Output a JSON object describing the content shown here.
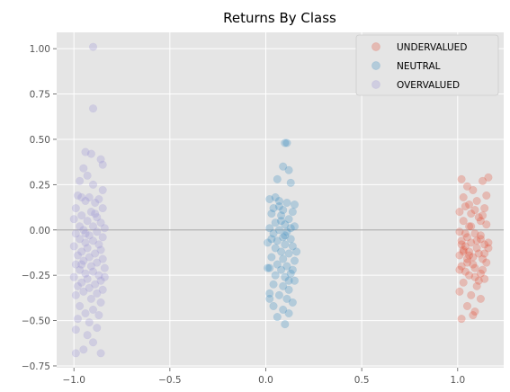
{
  "chart_data": {
    "type": "scatter",
    "title": "Returns By Class",
    "xlabel": "",
    "ylabel": "",
    "xlim": [
      -1.09,
      1.24
    ],
    "ylim": [
      -0.76,
      1.09
    ],
    "x_ticks": [
      -1.0,
      -0.5,
      0.0,
      0.5,
      1.0
    ],
    "x_tick_labels": [
      "−1.0",
      "−0.5",
      "0.0",
      "0.5",
      "1.0"
    ],
    "y_ticks": [
      -0.75,
      -0.5,
      -0.25,
      0.0,
      0.25,
      0.5,
      0.75,
      1.0
    ],
    "y_tick_labels": [
      "−0.75",
      "−0.50",
      "−0.25",
      "0.00",
      "0.25",
      "0.50",
      "0.75",
      "1.00"
    ],
    "grid": true,
    "reference_line_y": 0.0,
    "legend_position": "top-right",
    "style": {
      "plot_bg": "#e5e5e5",
      "grid_color": "#ffffff",
      "reference_line_color": "#b0b0b0",
      "point_opacity": 0.28
    },
    "series": [
      {
        "name": "UNDERVALUED",
        "color": "#e24a33",
        "points": [
          [
            1.02,
            0.28
          ],
          [
            1.05,
            0.24
          ],
          [
            1.08,
            0.22
          ],
          [
            1.03,
            0.18
          ],
          [
            1.13,
            0.27
          ],
          [
            1.16,
            0.29
          ],
          [
            1.1,
            0.16
          ],
          [
            1.14,
            0.12
          ],
          [
            1.01,
            0.1
          ],
          [
            1.07,
            0.09
          ],
          [
            1.12,
            0.05
          ],
          [
            1.03,
            0.05
          ],
          [
            1.06,
            0.02
          ],
          [
            1.15,
            0.03
          ],
          [
            1.01,
            -0.01
          ],
          [
            1.09,
            -0.02
          ],
          [
            1.05,
            -0.04
          ],
          [
            1.12,
            -0.05
          ],
          [
            1.02,
            -0.06
          ],
          [
            1.07,
            -0.07
          ],
          [
            1.14,
            -0.08
          ],
          [
            1.04,
            -0.09
          ],
          [
            1.1,
            -0.1
          ],
          [
            1.16,
            -0.1
          ],
          [
            1.03,
            -0.12
          ],
          [
            1.06,
            -0.12
          ],
          [
            1.11,
            -0.13
          ],
          [
            1.01,
            -0.14
          ],
          [
            1.08,
            -0.15
          ],
          [
            1.13,
            -0.16
          ],
          [
            1.05,
            -0.18
          ],
          [
            1.15,
            -0.18
          ],
          [
            1.02,
            -0.2
          ],
          [
            1.09,
            -0.21
          ],
          [
            1.04,
            -0.23
          ],
          [
            1.12,
            -0.24
          ],
          [
            1.06,
            -0.25
          ],
          [
            1.14,
            -0.27
          ],
          [
            1.03,
            -0.29
          ],
          [
            1.1,
            -0.31
          ],
          [
            1.01,
            -0.34
          ],
          [
            1.07,
            -0.36
          ],
          [
            1.12,
            -0.38
          ],
          [
            1.05,
            -0.42
          ],
          [
            1.09,
            -0.45
          ],
          [
            1.02,
            -0.49
          ],
          [
            1.08,
            -0.47
          ],
          [
            1.11,
            -0.28
          ],
          [
            1.04,
            -0.02
          ],
          [
            1.13,
            0.08
          ],
          [
            1.06,
            0.14
          ],
          [
            1.15,
            0.19
          ],
          [
            1.09,
            0.11
          ],
          [
            1.02,
            -0.08
          ],
          [
            1.12,
            -0.03
          ],
          [
            1.07,
            0.02
          ],
          [
            1.03,
            -0.11
          ],
          [
            1.1,
            -0.06
          ],
          [
            1.14,
            -0.13
          ],
          [
            1.05,
            -0.16
          ],
          [
            1.16,
            -0.07
          ],
          [
            1.08,
            -0.19
          ],
          [
            1.01,
            -0.22
          ],
          [
            1.11,
            0.07
          ],
          [
            1.04,
            0.13
          ],
          [
            1.06,
            -0.14
          ],
          [
            1.13,
            -0.22
          ],
          [
            1.09,
            -0.26
          ]
        ]
      },
      {
        "name": "NEUTRAL",
        "color": "#348abd",
        "points": [
          [
            0.1,
            0.48
          ],
          [
            0.11,
            0.48
          ],
          [
            0.09,
            0.35
          ],
          [
            0.12,
            0.33
          ],
          [
            0.06,
            0.28
          ],
          [
            0.13,
            0.26
          ],
          [
            0.02,
            0.17
          ],
          [
            0.07,
            0.16
          ],
          [
            0.11,
            0.15
          ],
          [
            0.15,
            0.14
          ],
          [
            0.04,
            0.12
          ],
          [
            0.09,
            0.11
          ],
          [
            0.14,
            0.1
          ],
          [
            0.03,
            0.09
          ],
          [
            0.08,
            0.08
          ],
          [
            0.12,
            0.06
          ],
          [
            0.05,
            0.04
          ],
          [
            0.1,
            0.03
          ],
          [
            0.15,
            0.02
          ],
          [
            0.02,
            0.01
          ],
          [
            0.07,
            0.0
          ],
          [
            0.11,
            -0.01
          ],
          [
            0.04,
            -0.02
          ],
          [
            0.09,
            -0.04
          ],
          [
            0.13,
            -0.05
          ],
          [
            0.06,
            -0.06
          ],
          [
            0.01,
            -0.07
          ],
          [
            0.1,
            -0.08
          ],
          [
            0.14,
            -0.09
          ],
          [
            0.05,
            -0.1
          ],
          [
            0.08,
            -0.12
          ],
          [
            0.12,
            -0.13
          ],
          [
            0.03,
            -0.15
          ],
          [
            0.09,
            -0.16
          ],
          [
            0.15,
            -0.17
          ],
          [
            0.06,
            -0.19
          ],
          [
            0.11,
            -0.2
          ],
          [
            0.02,
            -0.21
          ],
          [
            0.08,
            -0.22
          ],
          [
            0.13,
            -0.24
          ],
          [
            0.05,
            -0.25
          ],
          [
            0.1,
            -0.26
          ],
          [
            0.15,
            -0.28
          ],
          [
            0.04,
            -0.3
          ],
          [
            0.09,
            -0.31
          ],
          [
            0.12,
            -0.33
          ],
          [
            0.02,
            -0.35
          ],
          [
            0.07,
            -0.36
          ],
          [
            0.11,
            -0.38
          ],
          [
            0.14,
            -0.4
          ],
          [
            0.04,
            -0.42
          ],
          [
            0.09,
            -0.44
          ],
          [
            0.12,
            -0.46
          ],
          [
            0.1,
            -0.52
          ],
          [
            0.06,
            -0.48
          ],
          [
            0.01,
            -0.21
          ],
          [
            0.03,
            -0.05
          ],
          [
            0.16,
            -0.12
          ],
          [
            0.07,
            0.13
          ],
          [
            0.13,
            0.01
          ],
          [
            0.05,
            0.18
          ],
          [
            0.1,
            -0.03
          ],
          [
            0.14,
            -0.22
          ],
          [
            0.08,
            0.05
          ],
          [
            0.02,
            -0.38
          ],
          [
            0.12,
            -0.28
          ]
        ]
      },
      {
        "name": "OVERVALUED",
        "color": "#988ed5",
        "points": [
          [
            -0.9,
            1.01
          ],
          [
            -0.9,
            0.67
          ],
          [
            -0.94,
            0.43
          ],
          [
            -0.91,
            0.42
          ],
          [
            -0.86,
            0.39
          ],
          [
            -0.85,
            0.36
          ],
          [
            -0.95,
            0.34
          ],
          [
            -0.93,
            0.3
          ],
          [
            -0.97,
            0.27
          ],
          [
            -0.9,
            0.25
          ],
          [
            -0.85,
            0.22
          ],
          [
            -0.98,
            0.19
          ],
          [
            -0.96,
            0.18
          ],
          [
            -0.92,
            0.18
          ],
          [
            -0.87,
            0.17
          ],
          [
            -0.94,
            0.16
          ],
          [
            -0.89,
            0.15
          ],
          [
            -0.99,
            0.12
          ],
          [
            -0.85,
            0.12
          ],
          [
            -0.91,
            0.1
          ],
          [
            -0.96,
            0.08
          ],
          [
            -0.88,
            0.07
          ],
          [
            -1.0,
            0.06
          ],
          [
            -0.93,
            0.05
          ],
          [
            -0.86,
            0.04
          ],
          [
            -0.97,
            0.02
          ],
          [
            -0.9,
            0.02
          ],
          [
            -0.84,
            0.01
          ],
          [
            -0.95,
            0.0
          ],
          [
            -0.88,
            -0.01
          ],
          [
            -0.99,
            -0.02
          ],
          [
            -0.92,
            -0.03
          ],
          [
            -0.85,
            -0.04
          ],
          [
            -0.97,
            -0.05
          ],
          [
            -0.9,
            -0.06
          ],
          [
            -0.94,
            -0.07
          ],
          [
            -0.87,
            -0.08
          ],
          [
            -1.0,
            -0.09
          ],
          [
            -0.93,
            -0.1
          ],
          [
            -0.86,
            -0.11
          ],
          [
            -0.96,
            -0.12
          ],
          [
            -0.89,
            -0.13
          ],
          [
            -0.98,
            -0.14
          ],
          [
            -0.92,
            -0.15
          ],
          [
            -0.85,
            -0.16
          ],
          [
            -0.95,
            -0.17
          ],
          [
            -0.88,
            -0.18
          ],
          [
            -0.99,
            -0.19
          ],
          [
            -0.91,
            -0.2
          ],
          [
            -0.84,
            -0.21
          ],
          [
            -0.97,
            -0.22
          ],
          [
            -0.9,
            -0.23
          ],
          [
            -0.94,
            -0.24
          ],
          [
            -0.87,
            -0.25
          ],
          [
            -1.0,
            -0.26
          ],
          [
            -0.93,
            -0.27
          ],
          [
            -0.86,
            -0.28
          ],
          [
            -0.96,
            -0.29
          ],
          [
            -0.89,
            -0.3
          ],
          [
            -0.98,
            -0.31
          ],
          [
            -0.92,
            -0.32
          ],
          [
            -0.85,
            -0.33
          ],
          [
            -0.95,
            -0.34
          ],
          [
            -0.88,
            -0.35
          ],
          [
            -0.99,
            -0.36
          ],
          [
            -0.91,
            -0.38
          ],
          [
            -0.86,
            -0.4
          ],
          [
            -0.97,
            -0.42
          ],
          [
            -0.9,
            -0.44
          ],
          [
            -0.94,
            -0.46
          ],
          [
            -0.87,
            -0.47
          ],
          [
            -0.98,
            -0.49
          ],
          [
            -0.92,
            -0.51
          ],
          [
            -0.88,
            -0.54
          ],
          [
            -0.99,
            -0.55
          ],
          [
            -0.93,
            -0.58
          ],
          [
            -0.9,
            -0.62
          ],
          [
            -0.95,
            -0.66
          ],
          [
            -0.99,
            -0.68
          ],
          [
            -0.86,
            -0.68
          ],
          [
            -0.84,
            -0.26
          ],
          [
            -0.94,
            -0.02
          ],
          [
            -0.89,
            0.09
          ],
          [
            -0.96,
            -0.19
          ]
        ]
      }
    ]
  }
}
